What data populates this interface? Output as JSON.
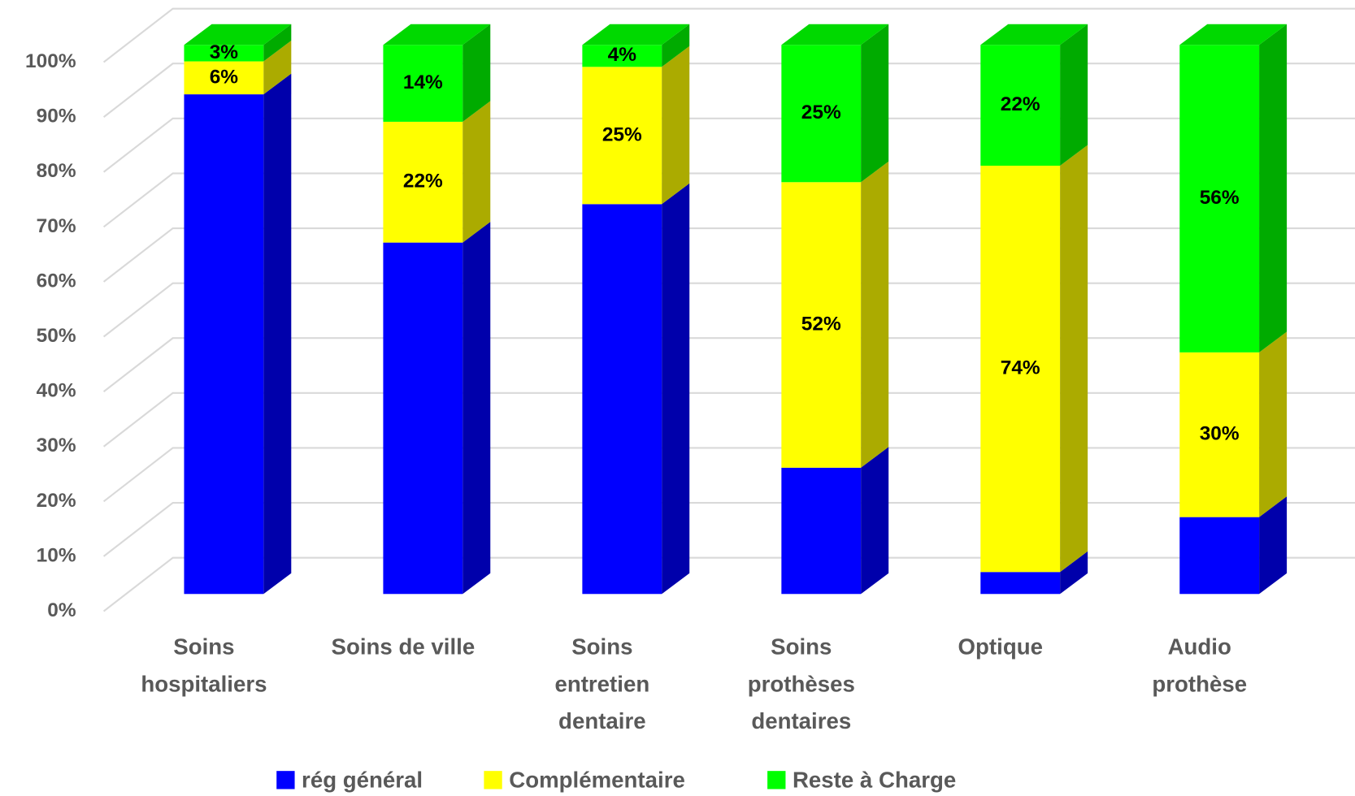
{
  "chart_data": {
    "type": "bar3d_stacked",
    "categories": [
      "Soins\nhospitaliers",
      "Soins de ville",
      "Soins\nentretien\ndentaire",
      "Soins\nprothèses\ndentaires",
      "Optique",
      "Audio\nprothèse"
    ],
    "series": [
      {
        "name": "rég général",
        "color": "#0000ff",
        "values": [
          91,
          64,
          71,
          23,
          4,
          14
        ]
      },
      {
        "name": "Complémentaire",
        "color": "#ffff00",
        "values": [
          6,
          22,
          25,
          52,
          74,
          30
        ],
        "value_labels": [
          "6%",
          "22%",
          "25%",
          "52%",
          "74%",
          "30%"
        ]
      },
      {
        "name": "Reste à Charge",
        "color": "#00ff00",
        "values": [
          3,
          14,
          4,
          25,
          22,
          56
        ],
        "value_labels": [
          "3%",
          "14%",
          "4%",
          "25%",
          "22%",
          "56%"
        ]
      }
    ],
    "ylim": [
      0,
      100
    ],
    "yticks": [
      {
        "value": 0,
        "label": "0%"
      },
      {
        "value": 10,
        "label": "10%"
      },
      {
        "value": 20,
        "label": "20%"
      },
      {
        "value": 30,
        "label": "30%"
      },
      {
        "value": 40,
        "label": "40%"
      },
      {
        "value": 50,
        "label": "50%"
      },
      {
        "value": 60,
        "label": "60%"
      },
      {
        "value": 70,
        "label": "70%"
      },
      {
        "value": 80,
        "label": "80%"
      },
      {
        "value": 90,
        "label": "90%"
      },
      {
        "value": 100,
        "label": "100%"
      }
    ],
    "grid": true,
    "legend": "bottom"
  }
}
